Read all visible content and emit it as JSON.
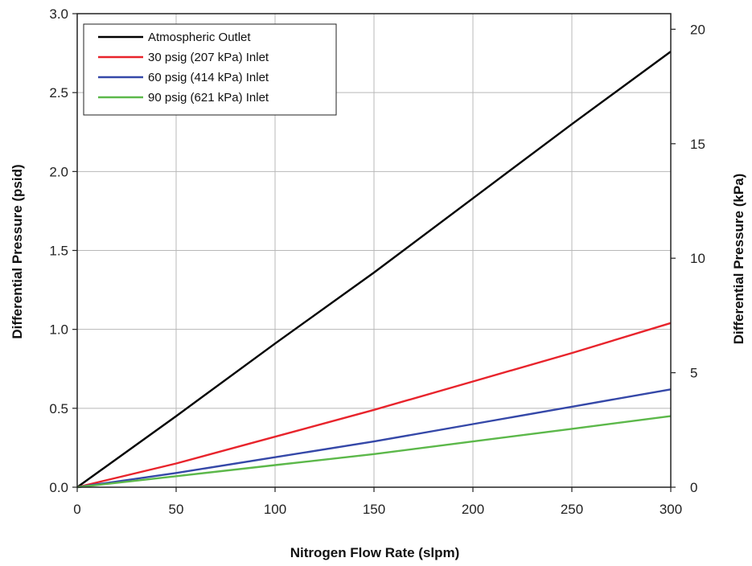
{
  "chart_data": {
    "type": "line",
    "title": "",
    "xlabel": "Nitrogen Flow Rate (slpm)",
    "ylabel": "Differential Pressure (psid)",
    "y2label": "Differential Pressure (kPa)",
    "xlim": [
      0,
      300
    ],
    "ylim": [
      0,
      3.0
    ],
    "y2lim": [
      0,
      20.68
    ],
    "x_ticks": [
      0,
      50,
      100,
      150,
      200,
      250,
      300
    ],
    "y_ticks": [
      0.0,
      0.5,
      1.0,
      1.5,
      2.0,
      2.5,
      3.0
    ],
    "y_tick_labels": [
      "0.0",
      "0.5",
      "1.0",
      "1.5",
      "2.0",
      "2.5",
      "3.0"
    ],
    "y2_ticks": [
      0,
      5,
      10,
      15,
      20
    ],
    "grid": true,
    "legend_position": "top-left",
    "series": [
      {
        "name": "Atmospheric Outlet",
        "color": "#000000",
        "x": [
          0,
          50,
          100,
          150,
          200,
          250,
          300
        ],
        "y": [
          0,
          0.45,
          0.91,
          1.36,
          1.83,
          2.3,
          2.76
        ]
      },
      {
        "name": "30 psig (207 kPa) Inlet",
        "color": "#e8242c",
        "x": [
          0,
          50,
          100,
          150,
          200,
          250,
          300
        ],
        "y": [
          0,
          0.15,
          0.32,
          0.49,
          0.67,
          0.85,
          1.04
        ]
      },
      {
        "name": "60 psig (414 kPa) Inlet",
        "color": "#3548a8",
        "x": [
          0,
          50,
          100,
          150,
          200,
          250,
          300
        ],
        "y": [
          0,
          0.09,
          0.19,
          0.29,
          0.4,
          0.51,
          0.62
        ]
      },
      {
        "name": "90 psig (621 kPa) Inlet",
        "color": "#5cb84a",
        "x": [
          0,
          50,
          100,
          150,
          200,
          250,
          300
        ],
        "y": [
          0,
          0.07,
          0.14,
          0.21,
          0.29,
          0.37,
          0.45
        ]
      }
    ]
  }
}
